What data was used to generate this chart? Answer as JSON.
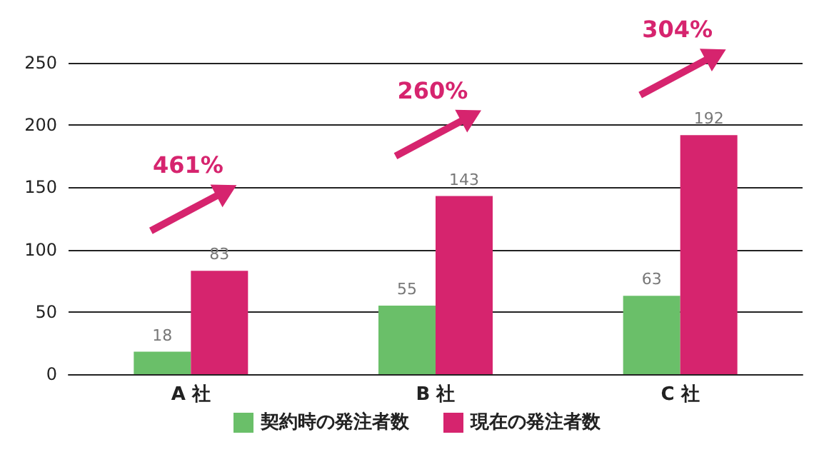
{
  "chart_data": {
    "type": "bar",
    "categories": [
      "A 社",
      "B 社",
      "C 社"
    ],
    "series": [
      {
        "name": "契約時の発注者数",
        "color": "#6abf69",
        "values": [
          18,
          55,
          63
        ]
      },
      {
        "name": "現在の発注者数",
        "color": "#d6246e",
        "values": [
          83,
          143,
          192
        ]
      }
    ],
    "ylim": [
      0,
      250
    ],
    "yticks": [
      0,
      50,
      100,
      150,
      200,
      250
    ],
    "grid": "y",
    "legend": "bottom",
    "data_labels": true,
    "annotations": [
      "461%",
      "260%",
      "304%"
    ]
  }
}
